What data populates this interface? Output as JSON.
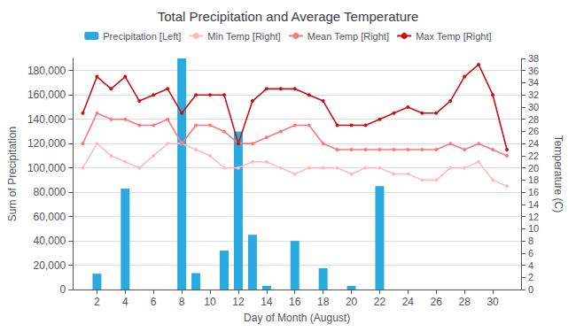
{
  "chart_data": {
    "type": "bar",
    "title": "Total Precipitation and Average Temperature",
    "xlabel": "Day of Month (August)",
    "ylabel": "Sum of Precipitation",
    "y2label": "Temperature (C)",
    "x": [
      1,
      2,
      3,
      4,
      5,
      6,
      7,
      8,
      9,
      10,
      11,
      12,
      13,
      14,
      15,
      16,
      17,
      18,
      19,
      20,
      21,
      22,
      23,
      24,
      25,
      26,
      27,
      28,
      29,
      30,
      31
    ],
    "series": [
      {
        "name": "Precipitation [Left]",
        "type": "bar",
        "color": "#29ABE2",
        "values": [
          0,
          13000,
          0,
          83000,
          0,
          0,
          0,
          190000,
          13500,
          0,
          32000,
          130000,
          45000,
          3000,
          0,
          40000,
          0,
          17500,
          0,
          3000,
          0,
          85000,
          0,
          0,
          0,
          0,
          0,
          0,
          0,
          0,
          0
        ]
      },
      {
        "name": "Min Temp [Right]",
        "type": "line",
        "axis": "y2",
        "color": "#FFBBBB",
        "marker": "circle",
        "values": [
          20,
          24,
          22,
          21,
          20,
          22,
          24,
          24,
          23,
          22,
          20,
          20,
          21,
          21,
          20,
          19,
          20,
          20,
          20,
          19,
          20,
          20,
          19,
          19,
          18,
          18,
          20,
          20,
          21,
          18,
          17
        ]
      },
      {
        "name": "Mean Temp [Right]",
        "type": "line",
        "axis": "y2",
        "color": "#FF7777",
        "marker": "circle",
        "values": [
          24,
          29,
          28,
          28,
          27,
          27,
          28,
          24,
          27,
          27,
          26,
          24,
          24,
          25,
          26,
          27,
          27,
          24,
          23,
          23,
          23,
          23,
          23,
          23,
          23,
          23,
          24,
          23,
          24,
          23,
          22
        ]
      },
      {
        "name": "Max Temp [Right]",
        "type": "line",
        "axis": "y2",
        "color": "#CC1111",
        "marker": "circle",
        "values": [
          29,
          35,
          33,
          35,
          31,
          32,
          33,
          29,
          32,
          32,
          32,
          24,
          31,
          33,
          33,
          33,
          32,
          31,
          27,
          27,
          27,
          28,
          29,
          30,
          29,
          29,
          31,
          35,
          37,
          32,
          23
        ]
      }
    ],
    "xlim": [
      0.3,
      32
    ],
    "xticks": [
      2,
      4,
      6,
      8,
      10,
      12,
      14,
      16,
      18,
      20,
      22,
      24,
      26,
      28,
      30
    ],
    "ylim": [
      0,
      190000
    ],
    "yticks": [
      0,
      {
        "value": 20000,
        "label": "20,000"
      },
      {
        "value": 40000,
        "label": "40,000"
      },
      {
        "value": 60000,
        "label": "60,000"
      },
      {
        "value": 80000,
        "label": "80,000"
      },
      {
        "value": 100000,
        "label": "100,000"
      },
      {
        "value": 120000,
        "label": "120,000"
      },
      {
        "value": 140000,
        "label": "140,000"
      },
      {
        "value": 160000,
        "label": "160,000"
      },
      {
        "value": 180000,
        "label": "180,000"
      }
    ],
    "y2lim": [
      0,
      38
    ],
    "y2ticks": [
      0,
      2,
      4,
      6,
      8,
      10,
      12,
      14,
      16,
      18,
      20,
      22,
      24,
      26,
      28,
      30,
      32,
      34,
      36,
      38
    ],
    "grid": true,
    "legend": "top"
  }
}
